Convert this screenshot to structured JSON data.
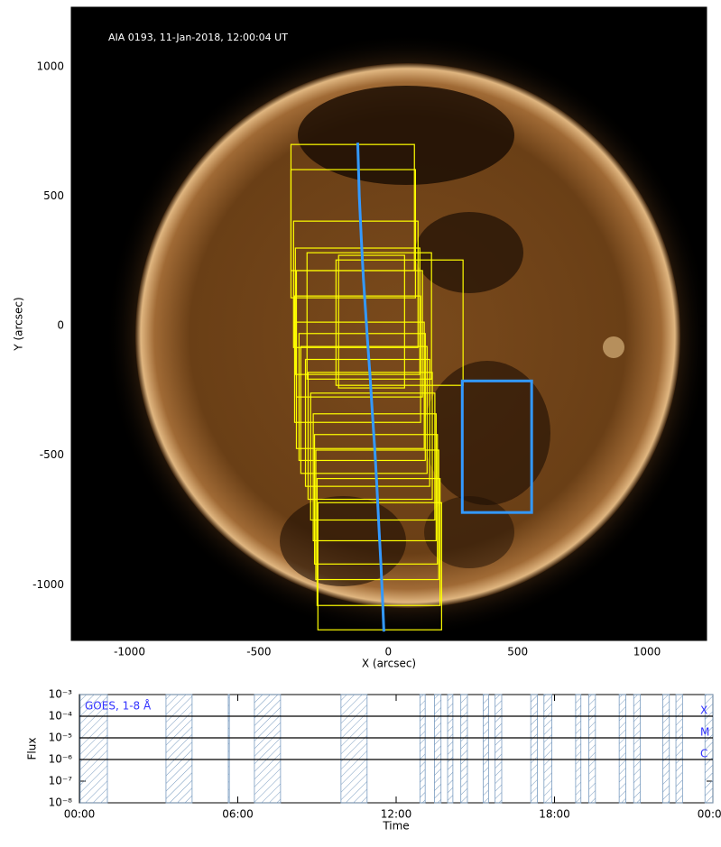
{
  "chart_data": [
    {
      "type": "image",
      "annotation": "AIA 0193, 11-Jan-2018, 12:00:04 UT",
      "xlabel": "X (arcsec)",
      "ylabel": "Y (arcsec)",
      "xlim": [
        -1225,
        1230
      ],
      "ylim": [
        -1215,
        1230
      ],
      "xticks": [
        -1000,
        -500,
        0,
        500,
        1000
      ],
      "yticks": [
        -1000,
        -500,
        0,
        500,
        1000
      ],
      "box_color": "#ffff00",
      "boxes": [
        [
          -376,
          101,
          213,
          700
        ],
        [
          -376,
          105,
          108,
          603
        ],
        [
          -366,
          115,
          -84,
          404
        ],
        [
          -359,
          122,
          -188,
          300
        ],
        [
          -314,
          167,
          -206,
          282
        ],
        [
          -202,
          289,
          -230,
          254
        ],
        [
          -192,
          63,
          -240,
          272
        ],
        [
          -355,
          132,
          -275,
          213
        ],
        [
          -362,
          125,
          -373,
          115
        ],
        [
          -355,
          139,
          -474,
          14
        ],
        [
          -345,
          143,
          -520,
          -30
        ],
        [
          -338,
          150,
          -570,
          -80
        ],
        [
          -320,
          160,
          -620,
          -130
        ],
        [
          -310,
          170,
          -670,
          -180
        ],
        [
          -300,
          180,
          -750,
          -260
        ],
        [
          -290,
          185,
          -830,
          -340
        ],
        [
          -285,
          190,
          -920,
          -420
        ],
        [
          -280,
          195,
          -980,
          -480
        ],
        [
          -275,
          200,
          -1080,
          -590
        ],
        [
          -272,
          206,
          -1174,
          -683
        ]
      ],
      "slit_color": "#3399ff",
      "slit": {
        "x": [
          -118,
          -112,
          -104,
          -96,
          -88,
          -80,
          -70,
          -62,
          -52,
          -44,
          -36,
          -28,
          -22,
          -17
        ],
        "y": [
          707,
          500,
          330,
          180,
          60,
          -60,
          -200,
          -330,
          -480,
          -620,
          -780,
          -930,
          -1060,
          -1181
        ]
      },
      "region": [
        286,
        554,
        -721,
        -213
      ]
    },
    {
      "type": "timeseries",
      "annotation": "GOES, 1-8 Å",
      "xlabel": "Time",
      "ylabel": "Flux",
      "log": true,
      "xlim": [
        0,
        24
      ],
      "xticks": [
        {
          "value": 0,
          "label": "00:00"
        },
        {
          "value": 6,
          "label": "06:00"
        },
        {
          "value": 12,
          "label": "12:00"
        },
        {
          "value": 18,
          "label": "18:00"
        },
        {
          "value": 24,
          "label": "00:00"
        }
      ],
      "ylim": [
        1e-08,
        0.001
      ],
      "yticks": [
        {
          "value": 1e-08,
          "label": "10⁻⁸"
        },
        {
          "value": 1e-07,
          "label": "10⁻⁷"
        },
        {
          "value": 1e-06,
          "label": "10⁻⁶"
        },
        {
          "value": 1e-05,
          "label": "10⁻⁵"
        },
        {
          "value": 0.0001,
          "label": "10⁻⁴"
        },
        {
          "value": 0.001,
          "label": "10⁻³"
        }
      ],
      "class_levels": [
        0.0001,
        1e-05,
        1e-06
      ],
      "class_labels": [
        "X",
        "M",
        "C"
      ],
      "interval_color": "#7a9cc0",
      "intervals": [
        [
          0.03,
          1.06
        ],
        [
          3.28,
          4.27
        ],
        [
          5.64,
          5.68
        ],
        [
          6.63,
          7.62
        ],
        [
          9.91,
          10.9
        ],
        [
          12.9,
          13.1
        ],
        [
          13.45,
          13.7
        ],
        [
          13.95,
          14.15
        ],
        [
          14.45,
          14.7
        ],
        [
          15.3,
          15.5
        ],
        [
          15.75,
          16.0
        ],
        [
          17.1,
          17.35
        ],
        [
          17.6,
          17.9
        ],
        [
          18.8,
          19.0
        ],
        [
          19.3,
          19.55
        ],
        [
          20.45,
          20.7
        ],
        [
          21.0,
          21.25
        ],
        [
          22.1,
          22.35
        ],
        [
          22.6,
          22.85
        ],
        [
          23.7,
          24
        ]
      ]
    }
  ]
}
